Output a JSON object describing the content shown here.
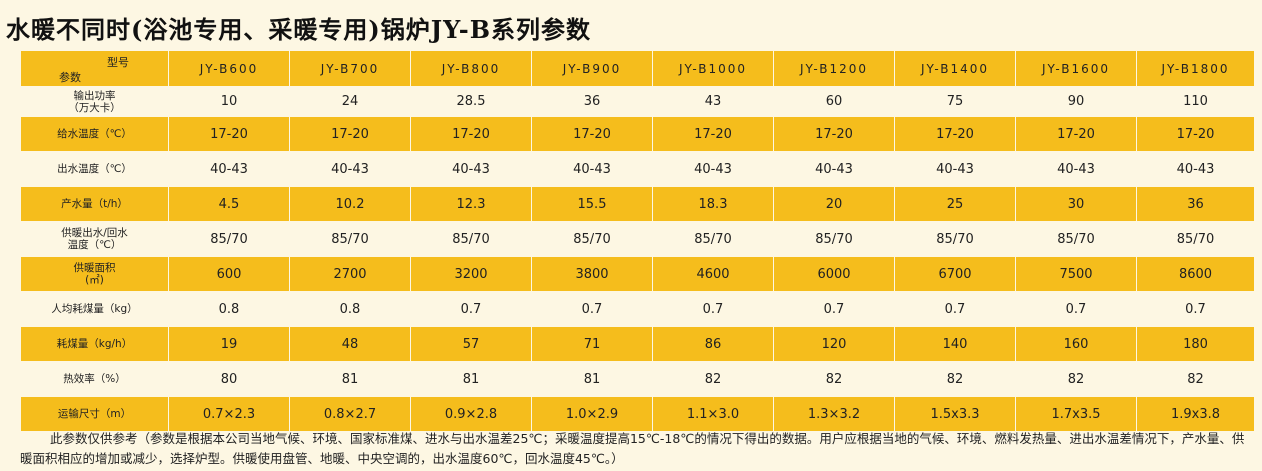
{
  "title": "水暖不同时(浴池专用、采暖专用)锅炉JY-B系列参数",
  "header": {
    "param_label": "参数",
    "model_label": "型号",
    "models": [
      "JY-B600",
      "JY-B700",
      "JY-B800",
      "JY-B900",
      "JY-B1000",
      "JY-B1200",
      "JY-B1400",
      "JY-B1600",
      "JY-B1800"
    ]
  },
  "rows": [
    {
      "label": "输出功率\n（万大卡）",
      "values": [
        "10",
        "24",
        "28.5",
        "36",
        "43",
        "60",
        "75",
        "90",
        "110"
      ]
    },
    {
      "label": "给水温度（℃）",
      "values": [
        "17-20",
        "17-20",
        "17-20",
        "17-20",
        "17-20",
        "17-20",
        "17-20",
        "17-20",
        "17-20"
      ]
    },
    {
      "label": "出水温度（℃）",
      "values": [
        "40-43",
        "40-43",
        "40-43",
        "40-43",
        "40-43",
        "40-43",
        "40-43",
        "40-43",
        "40-43"
      ]
    },
    {
      "label": "产水量（t/h）",
      "values": [
        "4.5",
        "10.2",
        "12.3",
        "15.5",
        "18.3",
        "20",
        "25",
        "30",
        "36"
      ]
    },
    {
      "label": "供暖出水/回水\n温度（℃）",
      "values": [
        "85/70",
        "85/70",
        "85/70",
        "85/70",
        "85/70",
        "85/70",
        "85/70",
        "85/70",
        "85/70"
      ]
    },
    {
      "label": "供暖面积\n(㎡)",
      "values": [
        "600",
        "2700",
        "3200",
        "3800",
        "4600",
        "6000",
        "6700",
        "7500",
        "8600"
      ]
    },
    {
      "label": "人均耗煤量（kg）",
      "values": [
        "0.8",
        "0.8",
        "0.7",
        "0.7",
        "0.7",
        "0.7",
        "0.7",
        "0.7",
        "0.7"
      ]
    },
    {
      "label": "耗煤量（kg/h）",
      "values": [
        "19",
        "48",
        "57",
        "71",
        "86",
        "120",
        "140",
        "160",
        "180"
      ]
    },
    {
      "label": "热效率（%）",
      "values": [
        "80",
        "81",
        "81",
        "81",
        "82",
        "82",
        "82",
        "82",
        "82"
      ]
    },
    {
      "label": "运输尺寸（m）",
      "values": [
        "0.7×2.3",
        "0.8×2.7",
        "0.9×2.8",
        "1.0×2.9",
        "1.1×3.0",
        "1.3×3.2",
        "1.5x3.3",
        "1.7x3.5",
        "1.9x3.8"
      ]
    }
  ],
  "note": "此参数仅供参考（参数是根据本公司当地气候、环境、国家标准煤、进水与出水温差25℃；采暖温度提高15℃-18℃的情况下得出的数据。用户应根据当地的气候、环境、燃料发热量、进出水温差情况下，产水量、供暖面积相应的增加或减少，选择炉型。供暖使用盘管、地暖、中央空调的，出水温度60℃，回水温度45℃。）",
  "colors": {
    "stripe": "#f5bd1c",
    "background": "#fdf7e3"
  }
}
